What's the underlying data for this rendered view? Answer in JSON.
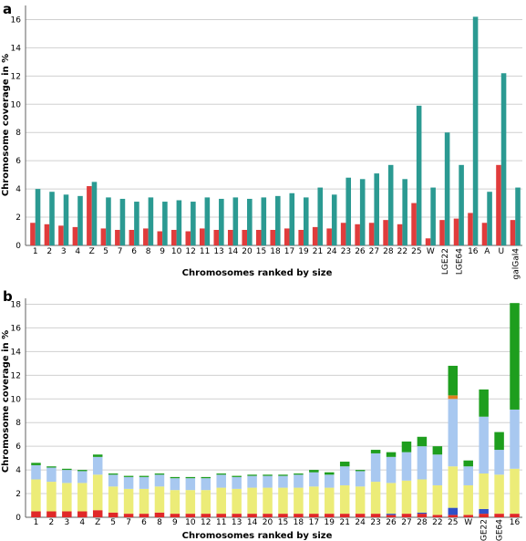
{
  "chart_data": [
    {
      "panel": "a",
      "type": "bar",
      "xlabel": "Chromosomes ranked by size",
      "ylabel": "Chromosome coverage in %",
      "ylim": [
        0,
        17
      ],
      "yticks": [
        0,
        2,
        4,
        6,
        8,
        10,
        12,
        14,
        16
      ],
      "grid": true,
      "categories": [
        "1",
        "2",
        "3",
        "4",
        "Z",
        "5",
        "7",
        "6",
        "8",
        "9",
        "10",
        "12",
        "11",
        "13",
        "14",
        "20",
        "15",
        "18",
        "17",
        "19",
        "21",
        "24",
        "23",
        "26",
        "27",
        "28",
        "22",
        "25",
        "W",
        "LGE22",
        "LGE64",
        "16",
        "A",
        "U",
        "galGal4"
      ],
      "series": [
        {
          "color": "#e03c3c",
          "values": [
            1.6,
            1.5,
            1.4,
            1.3,
            4.2,
            1.2,
            1.1,
            1.1,
            1.2,
            1.0,
            1.1,
            1.0,
            1.2,
            1.1,
            1.1,
            1.1,
            1.1,
            1.1,
            1.2,
            1.1,
            1.3,
            1.2,
            1.6,
            1.5,
            1.6,
            1.8,
            1.5,
            3.0,
            0.5,
            1.8,
            1.9,
            2.3,
            1.6,
            5.7,
            1.8
          ]
        },
        {
          "color": "#2b9a92",
          "values": [
            4.0,
            3.8,
            3.6,
            3.5,
            4.5,
            3.4,
            3.3,
            3.1,
            3.4,
            3.1,
            3.2,
            3.1,
            3.4,
            3.3,
            3.4,
            3.3,
            3.4,
            3.5,
            3.7,
            3.4,
            4.1,
            3.6,
            4.8,
            4.7,
            5.1,
            5.7,
            4.7,
            9.9,
            4.1,
            8.0,
            5.7,
            16.2,
            3.8,
            12.2,
            4.1
          ]
        }
      ]
    },
    {
      "panel": "b",
      "type": "bar",
      "stacked": true,
      "xlabel": "Chromosomes ranked by size",
      "ylabel": "Chromosome coverage in %",
      "ylim": [
        0,
        18.5
      ],
      "yticks": [
        0,
        2,
        4,
        6,
        8,
        10,
        12,
        14,
        16,
        18
      ],
      "grid": true,
      "categories": [
        "1",
        "2",
        "3",
        "4",
        "Z",
        "5",
        "7",
        "6",
        "8",
        "9",
        "10",
        "12",
        "11",
        "13",
        "14",
        "20",
        "15",
        "18",
        "17",
        "19",
        "21",
        "24",
        "23",
        "26",
        "27",
        "28",
        "22",
        "25",
        "W",
        "LGE22",
        "LGE64",
        "16"
      ],
      "series": [
        {
          "color": "#e02828",
          "values": [
            0.5,
            0.5,
            0.5,
            0.5,
            0.6,
            0.4,
            0.3,
            0.3,
            0.4,
            0.3,
            0.3,
            0.3,
            0.3,
            0.3,
            0.3,
            0.3,
            0.3,
            0.3,
            0.3,
            0.3,
            0.3,
            0.3,
            0.3,
            0.2,
            0.3,
            0.3,
            0.2,
            0.2,
            0.2,
            0.3,
            0.3,
            0.3
          ]
        },
        {
          "color": "#3050c8",
          "values": [
            0,
            0,
            0,
            0,
            0,
            0,
            0,
            0,
            0,
            0,
            0,
            0,
            0,
            0,
            0,
            0,
            0,
            0,
            0,
            0,
            0,
            0,
            0,
            0.1,
            0,
            0.1,
            0,
            0.6,
            0,
            0.4,
            0,
            0
          ]
        },
        {
          "color": "#ecec78",
          "values": [
            2.7,
            2.5,
            2.4,
            2.4,
            3.0,
            2.2,
            2.1,
            2.1,
            2.2,
            2.0,
            2.0,
            2.0,
            2.2,
            2.1,
            2.2,
            2.2,
            2.2,
            2.2,
            2.3,
            2.2,
            2.4,
            2.3,
            2.7,
            2.6,
            2.8,
            2.8,
            2.5,
            3.5,
            2.5,
            3.0,
            3.3,
            3.8
          ]
        },
        {
          "color": "#a8c8f0",
          "values": [
            1.2,
            1.2,
            1.1,
            1.0,
            1.5,
            1.0,
            1.0,
            1.0,
            1.0,
            1.0,
            1.0,
            1.0,
            1.1,
            1.0,
            1.0,
            1.0,
            1.0,
            1.1,
            1.2,
            1.1,
            1.6,
            1.3,
            2.4,
            2.2,
            2.4,
            2.8,
            2.6,
            5.7,
            1.6,
            4.8,
            2.1,
            5.0
          ]
        },
        {
          "color": "#e08020",
          "values": [
            0,
            0,
            0,
            0,
            0,
            0,
            0,
            0,
            0,
            0,
            0,
            0,
            0,
            0,
            0,
            0,
            0,
            0,
            0,
            0,
            0,
            0,
            0,
            0,
            0,
            0,
            0,
            0.3,
            0,
            0,
            0,
            0
          ]
        },
        {
          "color": "#1e9e1e",
          "values": [
            0.2,
            0.1,
            0.1,
            0.1,
            0.2,
            0.1,
            0.1,
            0.1,
            0.1,
            0.1,
            0.1,
            0.1,
            0.1,
            0.1,
            0.1,
            0.1,
            0.1,
            0.1,
            0.2,
            0.2,
            0.4,
            0.1,
            0.3,
            0.4,
            0.9,
            0.8,
            0.7,
            2.5,
            0.5,
            2.3,
            1.5,
            9.0
          ]
        }
      ]
    }
  ]
}
